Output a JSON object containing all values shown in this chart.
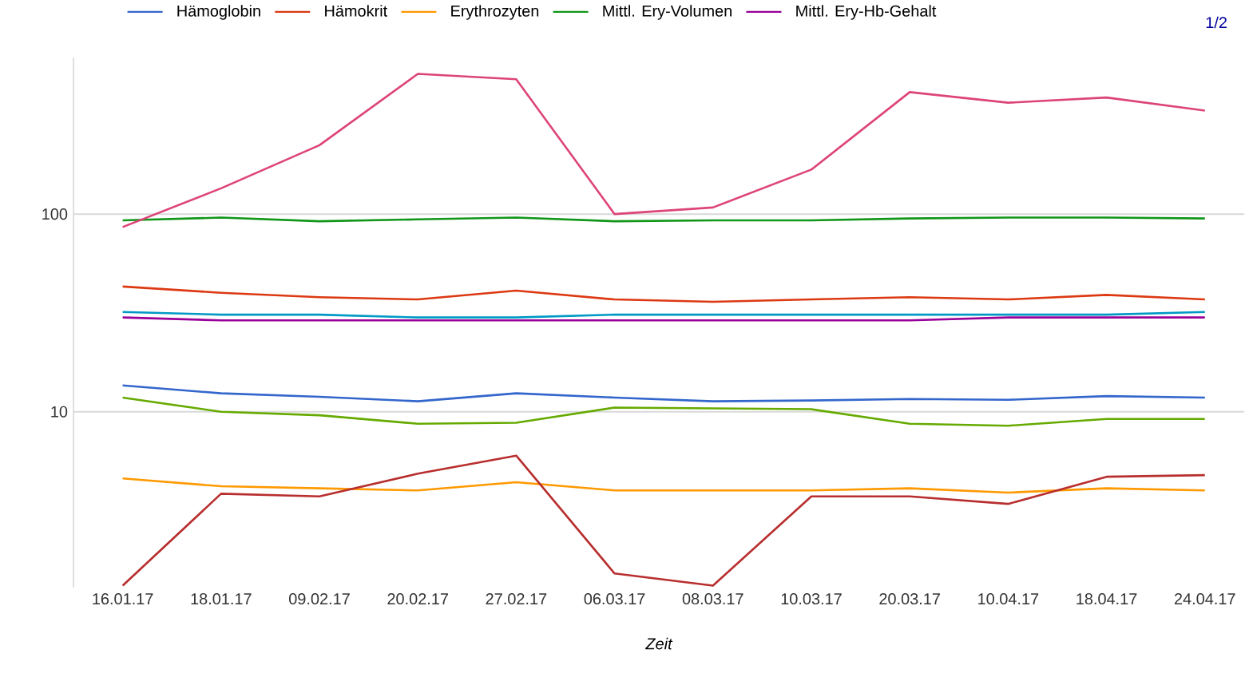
{
  "chart_data": {
    "type": "line",
    "xlabel": "Zeit",
    "categories": [
      "16.01.17",
      "18.01.17",
      "09.02.17",
      "20.02.17",
      "27.02.17",
      "06.03.17",
      "08.03.17",
      "10.03.17",
      "20.03.17",
      "10.04.17",
      "18.04.17",
      "24.04.17"
    ],
    "series": [
      {
        "name": "Hämoglobin",
        "color": "#3366cc",
        "values": [
          13.6,
          12.4,
          11.9,
          11.3,
          12.4,
          11.8,
          11.3,
          11.4,
          11.6,
          11.5,
          12.0,
          11.8
        ]
      },
      {
        "name": "Hämokrit",
        "color": "#dc3912",
        "values": [
          43,
          40,
          38,
          37,
          41,
          37,
          36,
          37,
          38,
          37,
          39,
          37
        ]
      },
      {
        "name": "Erythrozyten",
        "color": "#ff9900",
        "values": [
          4.6,
          4.2,
          4.1,
          4.0,
          4.4,
          4.0,
          4.0,
          4.0,
          4.1,
          3.9,
          4.1,
          4.0
        ]
      },
      {
        "name": "Mittl. Ery-Volumen",
        "color": "#109618",
        "values": [
          93,
          96,
          92,
          94,
          96,
          92,
          93,
          93,
          95,
          96,
          96,
          95
        ]
      },
      {
        "name": "Mittl. Ery-Hb-Gehalt",
        "color": "#990099",
        "values": [
          30,
          29,
          29,
          29,
          29,
          29,
          29,
          29,
          29,
          30,
          30,
          30
        ]
      },
      {
        "color": "#0099c6",
        "values": [
          32,
          31,
          31,
          30,
          30,
          31,
          31,
          31,
          31,
          31,
          31,
          32
        ]
      },
      {
        "color": "#dd4477",
        "values": [
          86,
          135,
          223,
          512,
          481,
          100,
          108,
          168,
          414,
          366,
          389,
          334
        ]
      },
      {
        "color": "#66aa00",
        "values": [
          11.8,
          10.0,
          9.6,
          8.7,
          8.8,
          10.5,
          10.4,
          10.3,
          8.7,
          8.5,
          9.2,
          9.2
        ]
      },
      {
        "color": "#b82e2e",
        "values": [
          1.32,
          3.85,
          3.73,
          4.86,
          6.0,
          1.52,
          1.32,
          3.73,
          3.73,
          3.42,
          4.69,
          4.78
        ]
      }
    ],
    "log": "y",
    "ylim": [
      1.29,
      620
    ],
    "yticks": [
      10,
      100
    ],
    "grid": "y",
    "legend": "top",
    "marker": "none",
    "line_style": "solid",
    "annotations": [
      "1/2"
    ]
  }
}
